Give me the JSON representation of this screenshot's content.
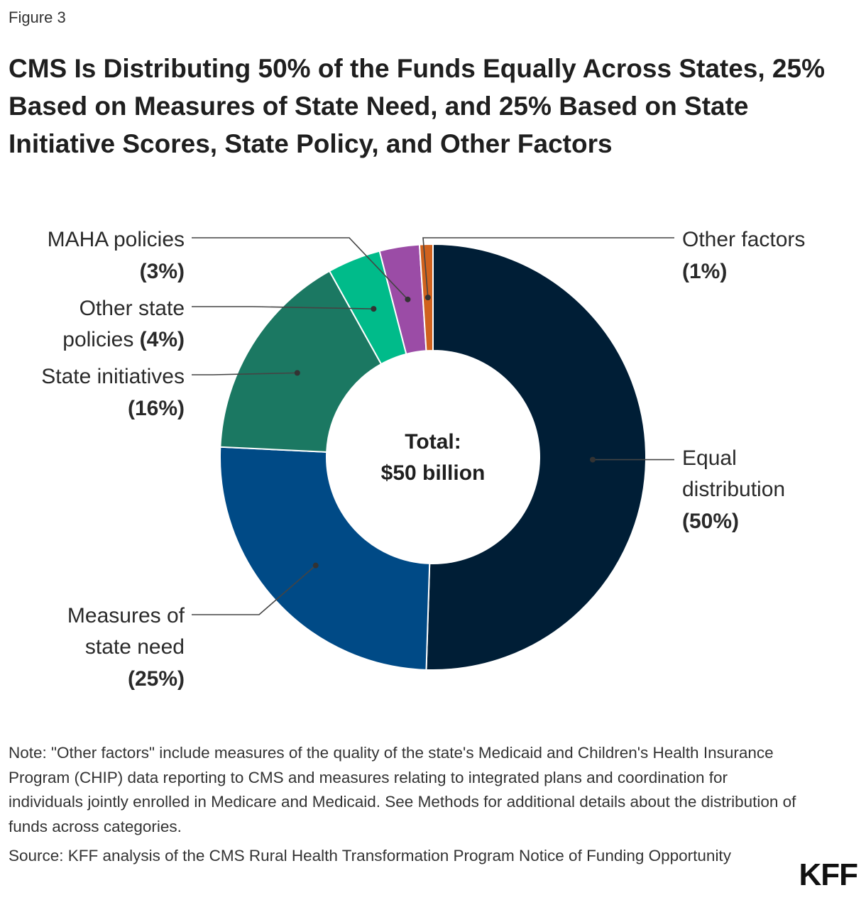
{
  "figure_label": "Figure 3",
  "title": "CMS Is Distributing 50% of the Funds Equally Across States, 25% Based on Measures of State Need, and 25% Based on State Initiative Scores, State Policy, and Other Factors",
  "chart_data": {
    "type": "pie",
    "donut": true,
    "center_label": [
      "Total:",
      "$50 billion"
    ],
    "slices": [
      {
        "label": "Equal distribution",
        "value": 50,
        "percent_label": "(50%)",
        "color": "#001e36"
      },
      {
        "label": "Measures of state need",
        "value": 25,
        "percent_label": "(25%)",
        "color": "#004a86"
      },
      {
        "label": "State initiatives",
        "value": 16,
        "percent_label": "(16%)",
        "color": "#1b7862"
      },
      {
        "label": "Other state policies",
        "value": 4,
        "percent_label": "(4%)",
        "color": "#00bb8a"
      },
      {
        "label": "MAHA policies",
        "value": 3,
        "percent_label": "(3%)",
        "color": "#9b4ca6"
      },
      {
        "label": "Other factors",
        "value": 1,
        "percent_label": "(1%)",
        "color": "#d0621e"
      }
    ]
  },
  "labels": {
    "equal": [
      "Equal",
      "distribution",
      "(50%)"
    ],
    "need": [
      "Measures of",
      "state need",
      "(25%)"
    ],
    "initiatives": [
      "State initiatives",
      "(16%)"
    ],
    "other_state": [
      "Other state",
      "policies ",
      "(4%)"
    ],
    "maha": [
      "MAHA policies",
      "(3%)"
    ],
    "other_factors": [
      "Other factors",
      "(1%)"
    ]
  },
  "note": "Note: \"Other factors\" include measures of the quality of the state's Medicaid and Children's Health Insurance Program (CHIP) data reporting to CMS and measures relating to integrated plans and coordination for individuals jointly enrolled in Medicare and Medicaid. See Methods for additional details about the distribution of funds across categories.",
  "source": "Source: KFF analysis of the CMS Rural Health Transformation Program Notice of Funding Opportunity",
  "logo": "KFF"
}
